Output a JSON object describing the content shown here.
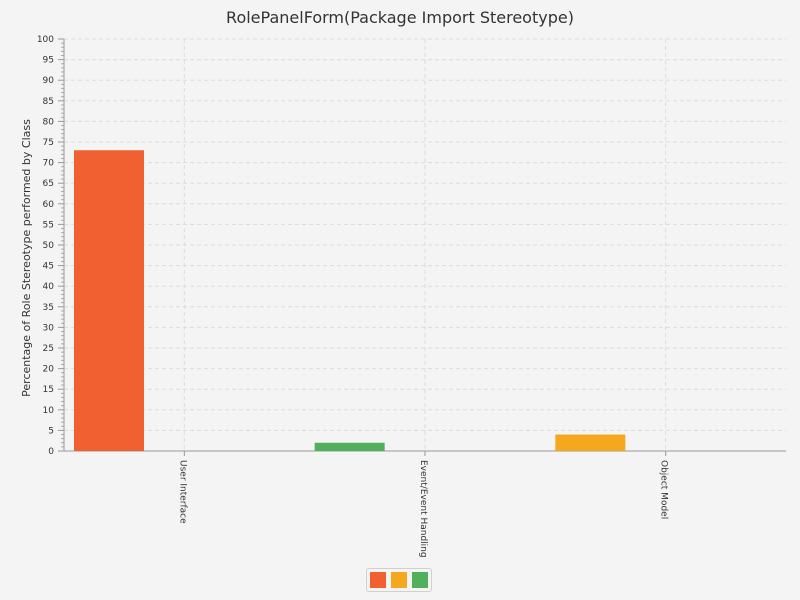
{
  "chart_data": {
    "type": "bar",
    "title": "RolePanelForm(Package Import Stereotype)",
    "xlabel": "",
    "ylabel": "Percentage of Role Stereotype performed by Class",
    "ylim": [
      0,
      100
    ],
    "ytick_step": 5,
    "grid": true,
    "categories": [
      "User Interface",
      "Event/Event Handling",
      "Object Model"
    ],
    "series": [
      {
        "color": "#f06030",
        "values": [
          73,
          0,
          0
        ]
      },
      {
        "color": "#f5a81e",
        "values": [
          0,
          0,
          4
        ]
      },
      {
        "color": "#52b05a",
        "values": [
          0,
          2,
          0
        ]
      }
    ],
    "legend": {
      "placement": "bottom-center",
      "swatch_colors": [
        "#f06030",
        "#f5a81e",
        "#52b05a"
      ]
    }
  }
}
